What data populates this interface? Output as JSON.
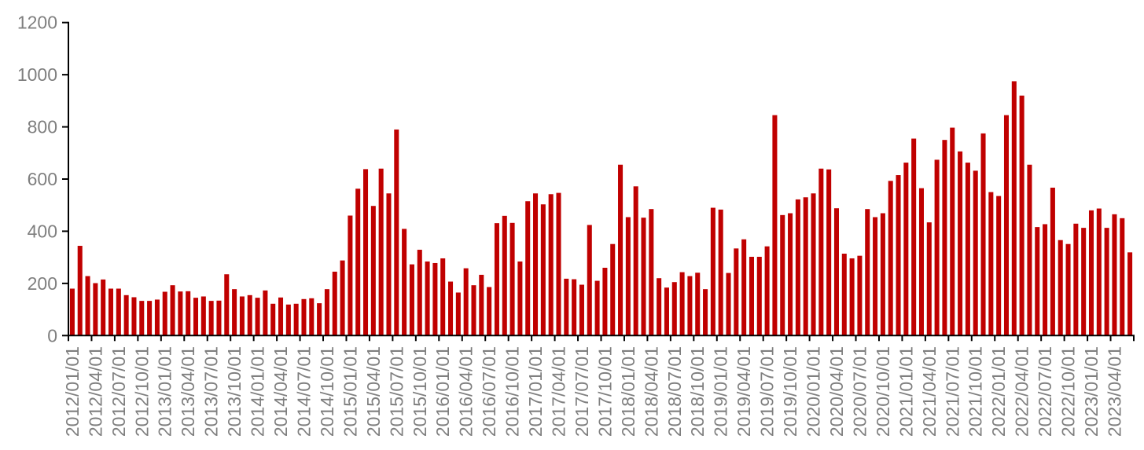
{
  "chart_data": {
    "type": "bar",
    "title": "",
    "xlabel": "",
    "ylabel": "",
    "bar_color": "#C00000",
    "axis_color": "#000000",
    "label_color": "#7f7f7f",
    "legend": "none",
    "grid": false,
    "ylim": [
      0,
      1200
    ],
    "y_ticks": [
      0,
      200,
      400,
      600,
      800,
      1000,
      1200
    ],
    "x_tick_labels": [
      "2012/01/01",
      "2012/04/01",
      "2012/07/01",
      "2012/10/01",
      "2013/01/01",
      "2013/04/01",
      "2013/07/01",
      "2013/10/01",
      "2014/01/01",
      "2014/04/01",
      "2014/07/01",
      "2014/10/01",
      "2015/01/01",
      "2015/04/01",
      "2015/07/01",
      "2015/10/01",
      "2016/01/01",
      "2016/04/01",
      "2016/07/01",
      "2016/10/01",
      "2017/01/01",
      "2017/04/01",
      "2017/07/01",
      "2017/10/01",
      "2018/01/01",
      "2018/04/01",
      "2018/07/01",
      "2018/10/01",
      "2019/01/01",
      "2019/04/01",
      "2019/07/01",
      "2019/10/01",
      "2020/01/01",
      "2020/04/01",
      "2020/07/01",
      "2020/10/01",
      "2021/01/01",
      "2021/04/01",
      "2021/07/01",
      "2021/10/01",
      "2022/01/01",
      "2022/04/01",
      "2022/07/01",
      "2022/10/01",
      "2023/01/01",
      "2023/04/01"
    ],
    "months": [
      "2012/01",
      "2012/02",
      "2012/03",
      "2012/04",
      "2012/05",
      "2012/06",
      "2012/07",
      "2012/08",
      "2012/09",
      "2012/10",
      "2012/11",
      "2012/12",
      "2013/01",
      "2013/02",
      "2013/03",
      "2013/04",
      "2013/05",
      "2013/06",
      "2013/07",
      "2013/08",
      "2013/09",
      "2013/10",
      "2013/11",
      "2013/12",
      "2014/01",
      "2014/02",
      "2014/03",
      "2014/04",
      "2014/05",
      "2014/06",
      "2014/07",
      "2014/08",
      "2014/09",
      "2014/10",
      "2014/11",
      "2014/12",
      "2015/01",
      "2015/02",
      "2015/03",
      "2015/04",
      "2015/05",
      "2015/06",
      "2015/07",
      "2015/08",
      "2015/09",
      "2015/10",
      "2015/11",
      "2015/12",
      "2016/01",
      "2016/02",
      "2016/03",
      "2016/04",
      "2016/05",
      "2016/06",
      "2016/07",
      "2016/08",
      "2016/09",
      "2016/10",
      "2016/11",
      "2016/12",
      "2017/01",
      "2017/02",
      "2017/03",
      "2017/04",
      "2017/05",
      "2017/06",
      "2017/07",
      "2017/08",
      "2017/09",
      "2017/10",
      "2017/11",
      "2017/12",
      "2018/01",
      "2018/02",
      "2018/03",
      "2018/04",
      "2018/05",
      "2018/06",
      "2018/07",
      "2018/08",
      "2018/09",
      "2018/10",
      "2018/11",
      "2018/12",
      "2019/01",
      "2019/02",
      "2019/03",
      "2019/04",
      "2019/05",
      "2019/06",
      "2019/07",
      "2019/08",
      "2019/09",
      "2019/10",
      "2019/11",
      "2019/12",
      "2020/01",
      "2020/02",
      "2020/03",
      "2020/04",
      "2020/05",
      "2020/06",
      "2020/07",
      "2020/08",
      "2020/09",
      "2020/10",
      "2020/11",
      "2020/12",
      "2021/01",
      "2021/02",
      "2021/03",
      "2021/04",
      "2021/05",
      "2021/06",
      "2021/07",
      "2021/08",
      "2021/09",
      "2021/10",
      "2021/11",
      "2021/12",
      "2022/01",
      "2022/02",
      "2022/03",
      "2022/04",
      "2022/05",
      "2022/06",
      "2022/07",
      "2022/08",
      "2022/09",
      "2022/10",
      "2022/11",
      "2022/12",
      "2023/01",
      "2023/02",
      "2023/03",
      "2023/04",
      "2023/05",
      "2023/06"
    ],
    "values": [
      180,
      344,
      228,
      201,
      215,
      180,
      180,
      155,
      147,
      133,
      133,
      138,
      168,
      193,
      169,
      170,
      145,
      150,
      133,
      134,
      235,
      178,
      150,
      155,
      145,
      173,
      122,
      146,
      119,
      122,
      140,
      143,
      124,
      178,
      245,
      288,
      460,
      563,
      638,
      497,
      640,
      545,
      790,
      409,
      273,
      329,
      284,
      278,
      296,
      207,
      165,
      258,
      193,
      233,
      186,
      431,
      459,
      432,
      284,
      515,
      545,
      503,
      542,
      547,
      218,
      216,
      195,
      424,
      210,
      260,
      351,
      655,
      454,
      572,
      452,
      485,
      220,
      184,
      205,
      243,
      228,
      241,
      178,
      490,
      483,
      240,
      334,
      369,
      302,
      302,
      342,
      845,
      462,
      469,
      522,
      530,
      545,
      640,
      637,
      488,
      314,
      296,
      306,
      485,
      454,
      469,
      593,
      615,
      663,
      755,
      565,
      434,
      674,
      750,
      797,
      706,
      663,
      632,
      775,
      550,
      535,
      845,
      975,
      920,
      655,
      416,
      427,
      567,
      366,
      351,
      429,
      413,
      480,
      487,
      413,
      465,
      450,
      319
    ]
  }
}
